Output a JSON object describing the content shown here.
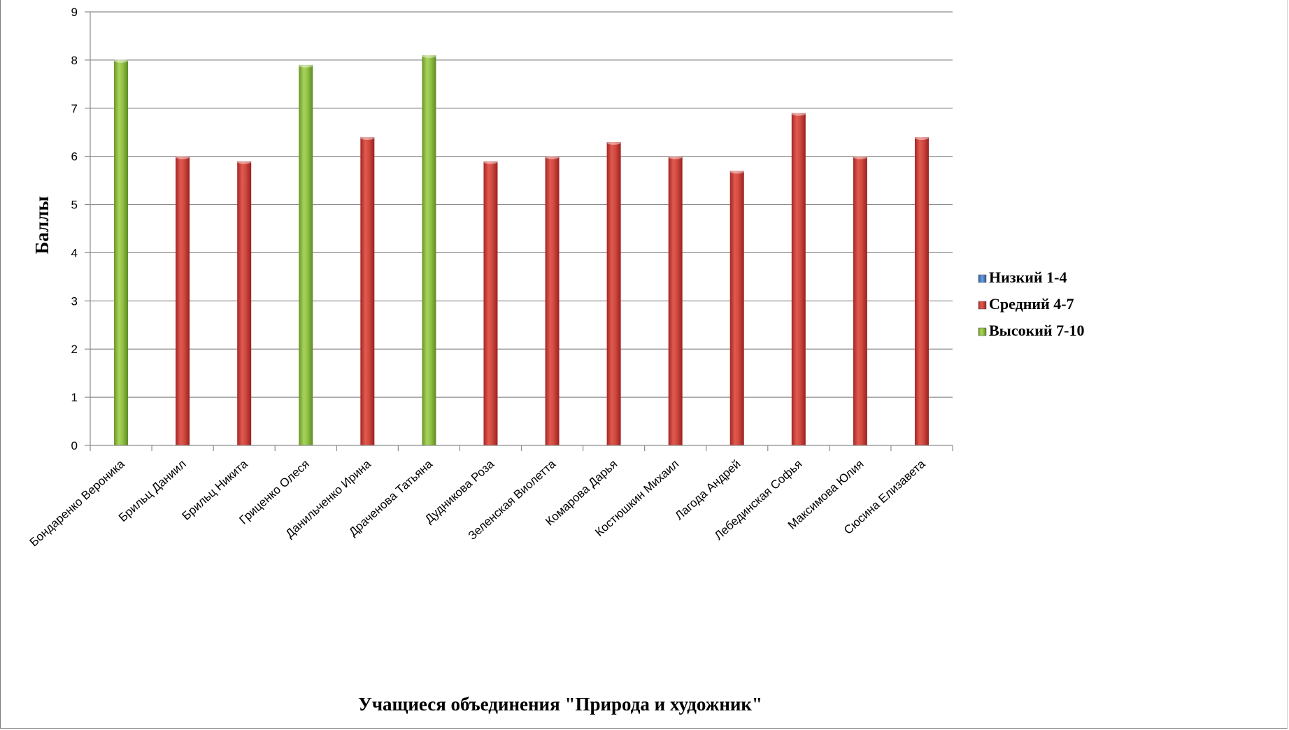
{
  "chart_data": {
    "type": "bar",
    "xlabel": "Учащиеся объединения \"Природа и художник\"",
    "ylabel": "Баллы",
    "ylim": [
      0,
      9
    ],
    "yticks": [
      "0",
      "1",
      "2",
      "3",
      "4",
      "5",
      "6",
      "7",
      "8",
      "9"
    ],
    "grid": true,
    "legend_position": "right",
    "categories": [
      "Бондаренко Вероника",
      "Брильц Даниил",
      "Брильц Никита",
      "Гриценко Олеся",
      "Данильченко Ирина",
      "Драченова Татьяна",
      "Дудникова Роза",
      "Зеленская Виолетта",
      "Комарова Дарья",
      "Костюшкин Михаил",
      "Лагода Андрей",
      "Лебединская Софья",
      "Максимова Юлия",
      "Сюсина Елизавета"
    ],
    "series": [
      {
        "name": "Низкий 1-4",
        "color": "#4a7fc1",
        "values": [
          null,
          null,
          null,
          null,
          null,
          null,
          null,
          null,
          null,
          null,
          null,
          null,
          null,
          null
        ]
      },
      {
        "name": "Средний 4-7",
        "color": "#c0392b",
        "values": [
          null,
          6.0,
          5.9,
          null,
          6.4,
          null,
          5.9,
          6.0,
          6.3,
          6.0,
          5.7,
          6.9,
          6.0,
          6.4
        ]
      },
      {
        "name": "Высокий  7-10",
        "color": "#7aa632",
        "values": [
          8.0,
          null,
          null,
          7.9,
          null,
          8.1,
          null,
          null,
          null,
          null,
          null,
          null,
          null,
          null
        ]
      }
    ]
  }
}
